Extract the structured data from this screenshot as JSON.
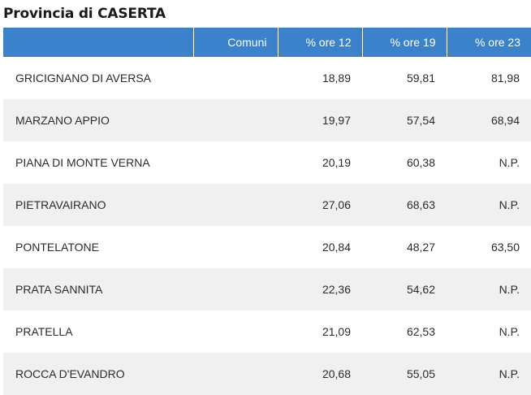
{
  "title": "Provincia di CASERTA",
  "table": {
    "headers": [
      "",
      "Comuni",
      "% ore 12",
      "% ore 19",
      "% ore 23"
    ],
    "rows": [
      {
        "name": "GRICIGNANO DI AVERSA",
        "comuni": "",
        "ore12": "18,89",
        "ore19": "59,81",
        "ore23": "81,98"
      },
      {
        "name": "MARZANO APPIO",
        "comuni": "",
        "ore12": "19,97",
        "ore19": "57,54",
        "ore23": "68,94"
      },
      {
        "name": "PIANA DI MONTE VERNA",
        "comuni": "",
        "ore12": "20,19",
        "ore19": "60,38",
        "ore23": "N.P."
      },
      {
        "name": "PIETRAVAIRANO",
        "comuni": "",
        "ore12": "27,06",
        "ore19": "68,63",
        "ore23": "N.P."
      },
      {
        "name": "PONTELATONE",
        "comuni": "",
        "ore12": "20,84",
        "ore19": "48,27",
        "ore23": "63,50"
      },
      {
        "name": "PRATA SANNITA",
        "comuni": "",
        "ore12": "22,36",
        "ore19": "54,62",
        "ore23": "N.P."
      },
      {
        "name": "PRATELLA",
        "comuni": "",
        "ore12": "21,09",
        "ore19": "62,53",
        "ore23": "N.P."
      },
      {
        "name": "ROCCA D'EVANDRO",
        "comuni": "",
        "ore12": "20,68",
        "ore19": "55,05",
        "ore23": "N.P."
      }
    ]
  },
  "colors": {
    "header_bg": "#3b82cc",
    "header_text": "#ffffff",
    "row_alt_bg": "#f0f0f0"
  }
}
